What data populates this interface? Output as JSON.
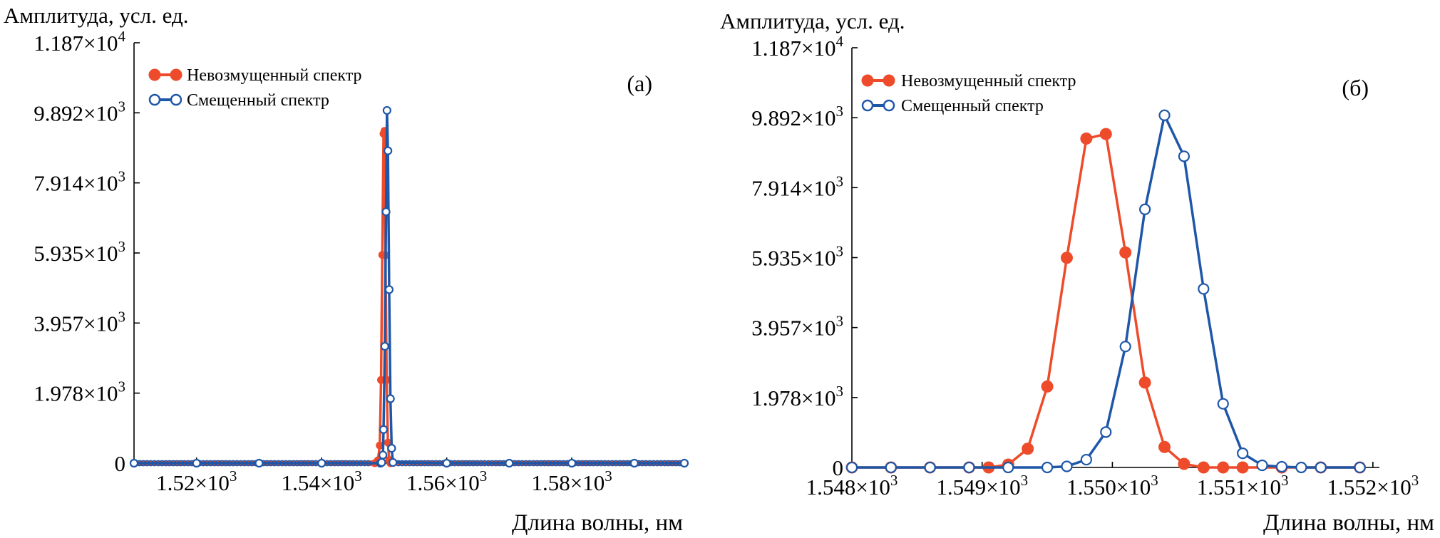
{
  "colors": {
    "unperturbed": "#ee4b2b",
    "shifted": "#1f57a8",
    "axis": "#000000"
  },
  "chart_data": [
    {
      "type": "line",
      "panel_label": "(a)",
      "ylabel": "Амплитуда, усл. ед.",
      "xlabel": "Длина волны, нм",
      "xlim": [
        1510,
        1598
      ],
      "ylim": [
        0,
        11870
      ],
      "yticks": [
        {
          "value": 0,
          "label": "0",
          "exp": ""
        },
        {
          "value": 1978,
          "label": "1.978×10",
          "exp": "3"
        },
        {
          "value": 3957,
          "label": "3.957×10",
          "exp": "3"
        },
        {
          "value": 5935,
          "label": "5.935×10",
          "exp": "3"
        },
        {
          "value": 7914,
          "label": "7.914×10",
          "exp": "3"
        },
        {
          "value": 9892,
          "label": "9.892×10",
          "exp": "3"
        },
        {
          "value": 11870,
          "label": "1.187×10",
          "exp": "4"
        }
      ],
      "xticks": [
        {
          "value": 1520,
          "label": "1.52×10",
          "exp": "3"
        },
        {
          "value": 1540,
          "label": "1.54×10",
          "exp": "3"
        },
        {
          "value": 1560,
          "label": "1.56×10",
          "exp": "3"
        },
        {
          "value": 1580,
          "label": "1.58×10",
          "exp": "3"
        }
      ],
      "legend": "top-left",
      "series": [
        {
          "name": "Невозмущенный спектр",
          "color_key": "unperturbed",
          "marker": "filled",
          "x": [
            1510,
            1520,
            1530,
            1540,
            1548.5,
            1549.0,
            1549.3,
            1549.5,
            1549.7,
            1549.9,
            1550.05,
            1550.2,
            1550.4,
            1550.6,
            1550.8,
            1551.0,
            1560,
            1570,
            1580,
            1590,
            1598
          ],
          "y": [
            0,
            0,
            0,
            0,
            0,
            80,
            500,
            2350,
            5880,
            9300,
            9380,
            5870,
            2350,
            580,
            90,
            0,
            0,
            0,
            0,
            0,
            0
          ]
        },
        {
          "name": "Смещенный спектр",
          "color_key": "shifted",
          "marker": "open",
          "x": [
            1510,
            1520,
            1530,
            1540,
            1549.4,
            1549.6,
            1549.8,
            1549.9,
            1550.1,
            1550.3,
            1550.45,
            1550.6,
            1550.8,
            1551.0,
            1551.2,
            1551.4,
            1560,
            1570,
            1580,
            1590,
            1598
          ],
          "y": [
            0,
            0,
            0,
            0,
            0,
            20,
            230,
            950,
            3300,
            7100,
            9960,
            8820,
            4900,
            1820,
            420,
            20,
            0,
            0,
            0,
            0,
            0
          ]
        }
      ]
    },
    {
      "type": "line",
      "panel_label": "(б)",
      "ylabel": "Амплитуда, усл. ед.",
      "xlabel": "Длина волны, нм",
      "xlim": [
        1548,
        1552.05
      ],
      "ylim": [
        0,
        11870
      ],
      "yticks": [
        {
          "value": 0,
          "label": "0",
          "exp": ""
        },
        {
          "value": 1978,
          "label": "1.978×10",
          "exp": "3"
        },
        {
          "value": 3957,
          "label": "3.957×10",
          "exp": "3"
        },
        {
          "value": 5935,
          "label": "5.935×10",
          "exp": "3"
        },
        {
          "value": 7914,
          "label": "7.914×10",
          "exp": "3"
        },
        {
          "value": 9892,
          "label": "9.892×10",
          "exp": "3"
        },
        {
          "value": 11870,
          "label": "1.187×10",
          "exp": "4"
        }
      ],
      "xticks": [
        {
          "value": 1548,
          "label": "1.548×10",
          "exp": "3"
        },
        {
          "value": 1549,
          "label": "1.549×10",
          "exp": "3"
        },
        {
          "value": 1550,
          "label": "1.550×10",
          "exp": "3"
        },
        {
          "value": 1551,
          "label": "1.551×10",
          "exp": "3"
        },
        {
          "value": 1552,
          "label": "1.552×10",
          "exp": "3"
        }
      ],
      "legend": "top-left",
      "series": [
        {
          "name": "Невозмущенный спектр",
          "color_key": "unperturbed",
          "marker": "filled",
          "x": [
            1548.0,
            1548.3,
            1548.6,
            1548.9,
            1549.05,
            1549.2,
            1549.35,
            1549.5,
            1549.65,
            1549.8,
            1549.95,
            1550.1,
            1550.25,
            1550.4,
            1550.55,
            1550.7,
            1550.85,
            1551.0,
            1551.3,
            1551.6,
            1551.9
          ],
          "y": [
            0,
            0,
            0,
            0,
            0,
            80,
            530,
            2290,
            5930,
            9300,
            9430,
            6080,
            2400,
            580,
            100,
            0,
            0,
            0,
            0,
            0,
            0
          ]
        },
        {
          "name": "Смещенный спектр",
          "color_key": "shifted",
          "marker": "open",
          "x": [
            1548.0,
            1548.3,
            1548.6,
            1548.9,
            1549.2,
            1549.5,
            1549.65,
            1549.8,
            1549.95,
            1550.1,
            1550.25,
            1550.4,
            1550.55,
            1550.7,
            1550.85,
            1551.0,
            1551.15,
            1551.3,
            1551.45,
            1551.6,
            1551.9
          ],
          "y": [
            0,
            0,
            0,
            0,
            0,
            0,
            30,
            220,
            1000,
            3420,
            7300,
            9960,
            8800,
            5050,
            1800,
            400,
            60,
            20,
            0,
            0,
            0
          ]
        }
      ]
    }
  ]
}
